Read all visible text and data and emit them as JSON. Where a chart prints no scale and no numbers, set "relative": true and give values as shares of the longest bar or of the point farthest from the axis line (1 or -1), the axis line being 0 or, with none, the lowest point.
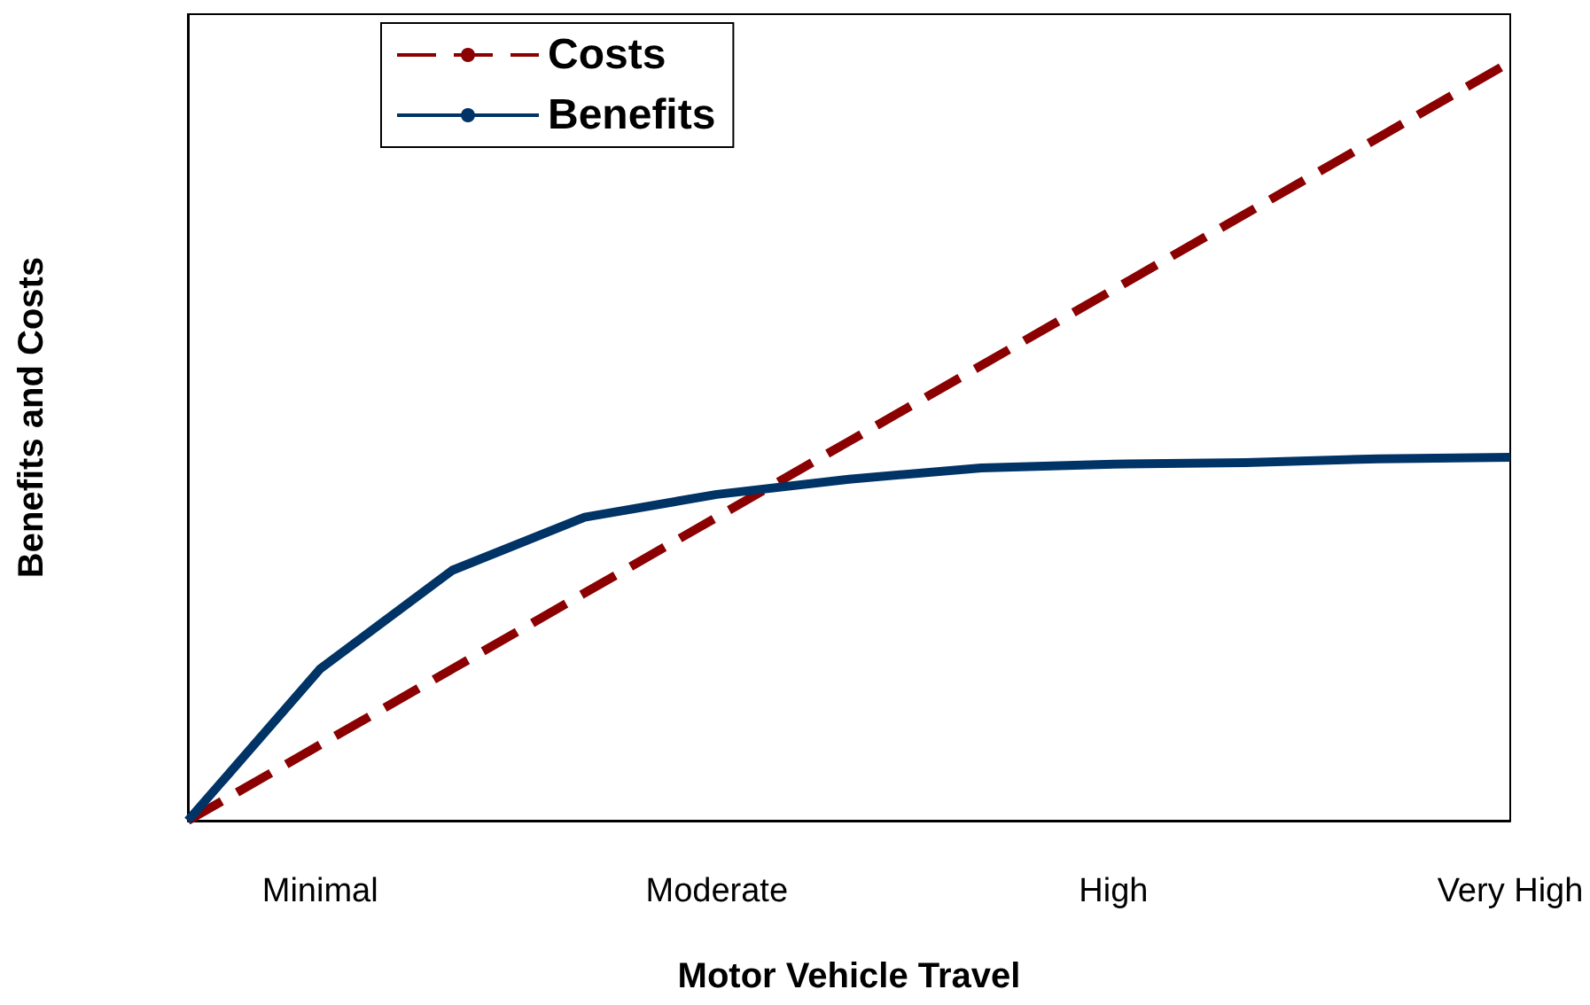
{
  "chart_data": {
    "type": "line",
    "relative": true,
    "xlabel": "Motor Vehicle Travel",
    "ylabel": "Benefits and Costs",
    "categories": [
      null,
      "Minimal",
      null,
      null,
      "Moderate",
      null,
      null,
      "High",
      null,
      null,
      "Very High"
    ],
    "series": [
      {
        "name": "Costs",
        "color": "#8b0000",
        "line_style": "dashed",
        "values": [
          0,
          0.1,
          0.2,
          0.3,
          0.4,
          0.5,
          0.6,
          0.7,
          0.8,
          0.9,
          1
        ]
      },
      {
        "name": "Benefits",
        "color": "#003366",
        "line_style": "solid",
        "values": [
          0,
          0.2,
          0.33,
          0.4,
          0.43,
          0.45,
          0.465,
          0.47,
          0.472,
          0.477,
          0.479
        ]
      }
    ],
    "legend": "top left",
    "grid": false,
    "marker": "none"
  }
}
